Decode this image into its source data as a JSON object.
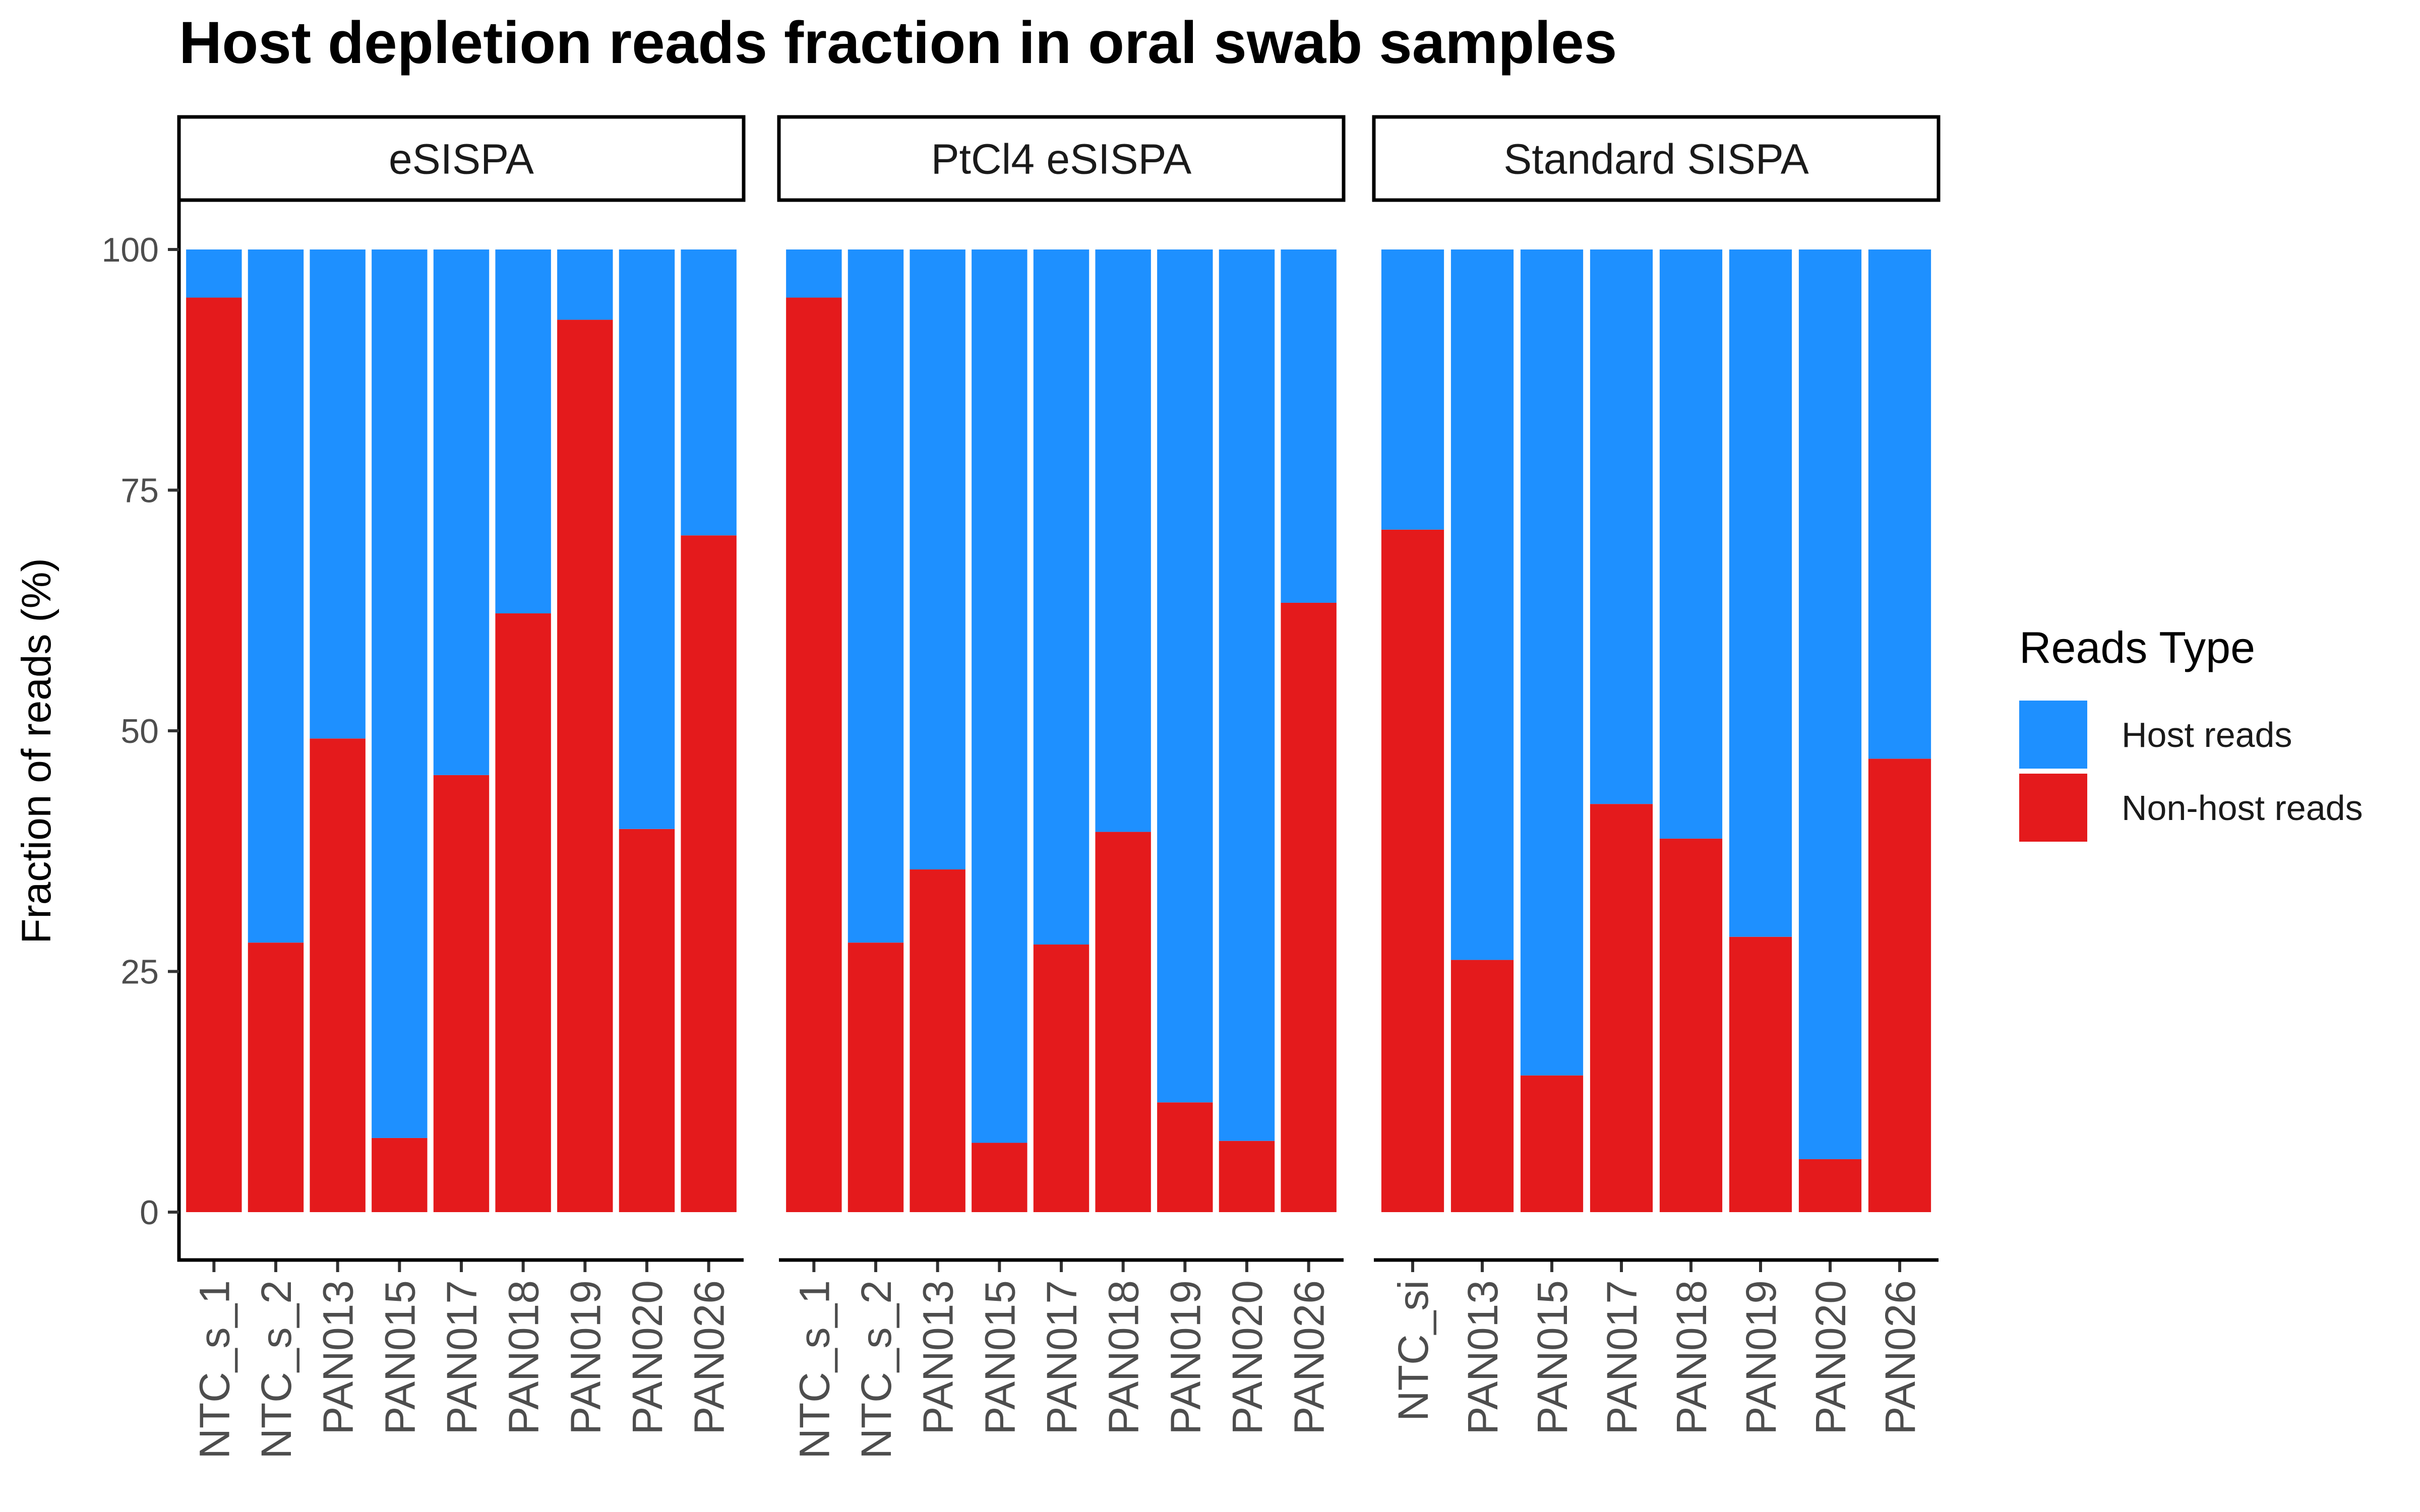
{
  "chart_data": {
    "type": "bar",
    "stacked": true,
    "title": "Host depletion reads fraction in oral swab samples",
    "ylabel": "Fraction of reads (%)",
    "xlabel": "",
    "ylim": [
      0,
      100
    ],
    "yticks": [
      0,
      25,
      50,
      75,
      100
    ],
    "legend": {
      "title": "Reads Type",
      "placement": "right",
      "entries": [
        {
          "name": "Host reads",
          "color": "#1E90FF"
        },
        {
          "name": "Non-host reads",
          "color": "#E41A1C"
        }
      ]
    },
    "panels": [
      {
        "name": "eSISPA",
        "categories": [
          "NTC_s_1",
          "NTC_s_2",
          "PAN013",
          "PAN015",
          "PAN017",
          "PAN018",
          "PAN019",
          "PAN020",
          "PAN026"
        ],
        "series": [
          {
            "name": "Non-host reads",
            "values": [
              95.0,
              28.0,
              49.2,
              7.7,
              45.4,
              62.2,
              92.7,
              39.8,
              70.3
            ]
          },
          {
            "name": "Host reads",
            "values": [
              5.0,
              72.0,
              50.8,
              92.3,
              54.6,
              37.8,
              7.3,
              60.2,
              29.7
            ]
          }
        ]
      },
      {
        "name": "PtCl4 eSISPA",
        "categories": [
          "NTC_s_1",
          "NTC_s_2",
          "PAN013",
          "PAN015",
          "PAN017",
          "PAN018",
          "PAN019",
          "PAN020",
          "PAN026"
        ],
        "series": [
          {
            "name": "Non-host reads",
            "values": [
              95.0,
              28.0,
              35.6,
              7.2,
              27.8,
              39.5,
              11.4,
              7.4,
              63.3
            ]
          },
          {
            "name": "Host reads",
            "values": [
              5.0,
              72.0,
              64.4,
              92.8,
              72.2,
              60.5,
              88.6,
              92.6,
              36.7
            ]
          }
        ]
      },
      {
        "name": "Standard SISPA",
        "categories": [
          "NTC_si",
          "PAN013",
          "PAN015",
          "PAN017",
          "PAN018",
          "PAN019",
          "PAN020",
          "PAN026"
        ],
        "series": [
          {
            "name": "Non-host reads",
            "values": [
              70.9,
              26.2,
              14.2,
              42.4,
              38.8,
              28.6,
              5.5,
              47.1
            ]
          },
          {
            "name": "Host reads",
            "values": [
              29.1,
              73.8,
              85.8,
              57.6,
              61.2,
              71.4,
              94.5,
              52.9
            ]
          }
        ]
      }
    ]
  }
}
